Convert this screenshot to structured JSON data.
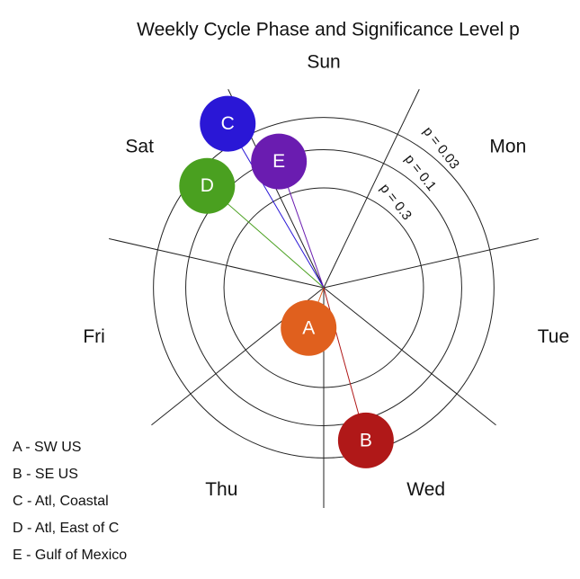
{
  "chart_data": {
    "type": "polar",
    "title": "Weekly Cycle Phase and Significance Level p",
    "categories": [
      "Sun",
      "Mon",
      "Tue",
      "Wed",
      "Thu",
      "Fri",
      "Sat"
    ],
    "rlim": [
      1,
      0.02
    ],
    "rticks": [
      {
        "value": 0.3,
        "label": "p = 0.3"
      },
      {
        "value": 0.1,
        "label": "p = 0.1"
      },
      {
        "value": 0.03,
        "label": "p = 0.03"
      }
    ],
    "series": [
      {
        "name": "A",
        "color": "#e0601e",
        "theta": 3.9,
        "p": 0.8
      },
      {
        "name": "B",
        "color": "#b01818",
        "theta": 3.2,
        "p": 0.048
      },
      {
        "name": "C",
        "color": "#2a17d6",
        "theta": 6.41,
        "p": 0.0127
      },
      {
        "name": "D",
        "color": "#4aa020",
        "theta": 6.05,
        "p": 0.055
      },
      {
        "name": "E",
        "color": "#6a1cb0",
        "theta": 6.62,
        "p": 0.114
      }
    ],
    "legend": [
      "A - SW US",
      "B - SE US",
      "C - Atl, Coastal",
      "D - Atl, East of C",
      "E - Gulf of Mexico"
    ]
  }
}
